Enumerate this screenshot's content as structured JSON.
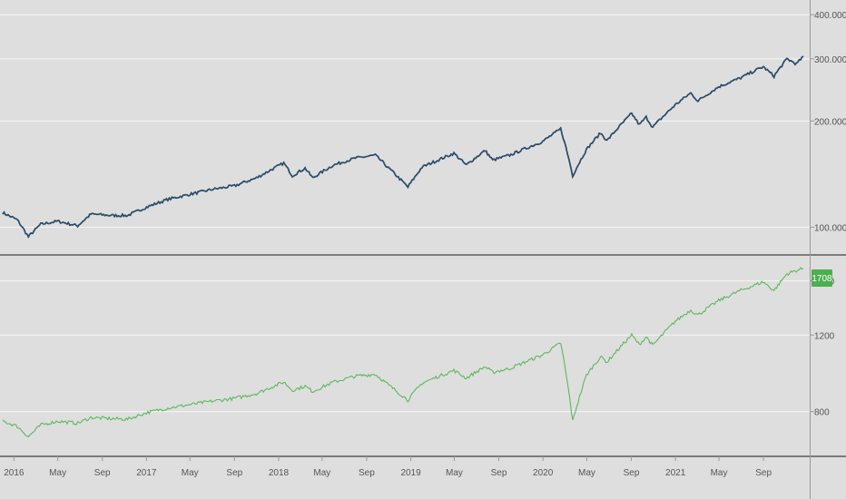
{
  "colors": {
    "background": "#dedede",
    "grid": "#f2f2f2",
    "separator": "#5a5a5a",
    "axis_text": "#555555",
    "price_series": "#1f5f99",
    "price_shadow": "#1a1a1a",
    "equity_series": "#5cb85c",
    "badge": "#4caf50"
  },
  "chart_data": [
    {
      "type": "line",
      "panel": "top",
      "y_scale": "log",
      "ylim": [
        85,
        420
      ],
      "yticks": [
        "100.0000",
        "200.0000",
        "300.0000",
        "400.0000"
      ],
      "ytick_values": [
        100,
        200,
        300,
        400
      ],
      "grid": true,
      "x_range": [
        "2015-12-01",
        "2021-12-20"
      ],
      "series": [
        {
          "color": "#1f5f99",
          "points": [
            [
              "2015-12-01",
              110
            ],
            [
              "2016-01-10",
              105
            ],
            [
              "2016-02-10",
              94
            ],
            [
              "2016-03-15",
              102
            ],
            [
              "2016-05-01",
              104
            ],
            [
              "2016-06-25",
              101
            ],
            [
              "2016-08-01",
              109
            ],
            [
              "2016-10-01",
              108
            ],
            [
              "2016-11-10",
              108
            ],
            [
              "2017-01-01",
              114
            ],
            [
              "2017-03-01",
              120
            ],
            [
              "2017-05-01",
              124
            ],
            [
              "2017-07-01",
              128
            ],
            [
              "2017-09-01",
              131
            ],
            [
              "2017-11-01",
              138
            ],
            [
              "2018-01-15",
              152
            ],
            [
              "2018-02-08",
              140
            ],
            [
              "2018-03-15",
              147
            ],
            [
              "2018-04-05",
              138
            ],
            [
              "2018-06-01",
              150
            ],
            [
              "2018-08-01",
              157
            ],
            [
              "2018-09-25",
              160
            ],
            [
              "2018-11-01",
              147
            ],
            [
              "2018-12-24",
              130
            ],
            [
              "2019-02-01",
              148
            ],
            [
              "2019-04-30",
              162
            ],
            [
              "2019-06-03",
              150
            ],
            [
              "2019-07-25",
              165
            ],
            [
              "2019-08-15",
              155
            ],
            [
              "2019-10-01",
              160
            ],
            [
              "2019-12-31",
              175
            ],
            [
              "2020-02-19",
              190
            ],
            [
              "2020-03-23",
              140
            ],
            [
              "2020-04-30",
              166
            ],
            [
              "2020-06-08",
              185
            ],
            [
              "2020-06-26",
              176
            ],
            [
              "2020-09-02",
              210
            ],
            [
              "2020-09-23",
              195
            ],
            [
              "2020-10-12",
              205
            ],
            [
              "2020-10-30",
              192
            ],
            [
              "2020-12-31",
              222
            ],
            [
              "2021-02-12",
              240
            ],
            [
              "2021-03-04",
              228
            ],
            [
              "2021-04-30",
              250
            ],
            [
              "2021-06-30",
              265
            ],
            [
              "2021-08-31",
              285
            ],
            [
              "2021-09-30",
              268
            ],
            [
              "2021-11-05",
              300
            ],
            [
              "2021-12-01",
              290
            ],
            [
              "2021-12-20",
              305
            ]
          ]
        }
      ]
    },
    {
      "type": "line",
      "panel": "bottom",
      "y_scale": "log",
      "ylim": [
        640,
        1800
      ],
      "yticks": [
        "800",
        "1200",
        "1600"
      ],
      "ytick_values": [
        800,
        1200,
        1600
      ],
      "grid": true,
      "x_range": [
        "2015-12-01",
        "2021-12-20"
      ],
      "last_value_label": "1708",
      "series": [
        {
          "color": "#5cb85c",
          "points": [
            [
              "2015-12-01",
              760
            ],
            [
              "2016-01-10",
              740
            ],
            [
              "2016-02-10",
              700
            ],
            [
              "2016-03-15",
              745
            ],
            [
              "2016-05-01",
              760
            ],
            [
              "2016-06-25",
              752
            ],
            [
              "2016-08-01",
              775
            ],
            [
              "2016-10-01",
              770
            ],
            [
              "2016-11-10",
              768
            ],
            [
              "2017-01-01",
              795
            ],
            [
              "2017-03-01",
              815
            ],
            [
              "2017-05-01",
              830
            ],
            [
              "2017-07-01",
              845
            ],
            [
              "2017-09-01",
              858
            ],
            [
              "2017-11-01",
              880
            ],
            [
              "2018-01-15",
              935
            ],
            [
              "2018-02-08",
              895
            ],
            [
              "2018-03-15",
              915
            ],
            [
              "2018-04-05",
              890
            ],
            [
              "2018-06-01",
              935
            ],
            [
              "2018-08-01",
              965
            ],
            [
              "2018-09-25",
              975
            ],
            [
              "2018-11-01",
              920
            ],
            [
              "2018-12-24",
              850
            ],
            [
              "2019-02-01",
              930
            ],
            [
              "2019-04-30",
              995
            ],
            [
              "2019-06-03",
              955
            ],
            [
              "2019-07-25",
              1015
            ],
            [
              "2019-08-15",
              985
            ],
            [
              "2019-10-01",
              1005
            ],
            [
              "2019-12-31",
              1080
            ],
            [
              "2020-02-19",
              1150
            ],
            [
              "2020-03-23",
              760
            ],
            [
              "2020-04-30",
              970
            ],
            [
              "2020-06-08",
              1070
            ],
            [
              "2020-06-26",
              1040
            ],
            [
              "2020-09-02",
              1200
            ],
            [
              "2020-09-23",
              1140
            ],
            [
              "2020-10-12",
              1190
            ],
            [
              "2020-10-30",
              1135
            ],
            [
              "2020-12-31",
              1290
            ],
            [
              "2021-02-12",
              1370
            ],
            [
              "2021-03-04",
              1335
            ],
            [
              "2021-04-30",
              1440
            ],
            [
              "2021-06-30",
              1520
            ],
            [
              "2021-08-31",
              1590
            ],
            [
              "2021-09-30",
              1520
            ],
            [
              "2021-11-05",
              1660
            ],
            [
              "2021-12-01",
              1690
            ],
            [
              "2021-12-20",
              1708
            ]
          ]
        }
      ]
    }
  ],
  "time_axis": {
    "labels": [
      {
        "text": "2016",
        "date": "2016-01-01"
      },
      {
        "text": "May",
        "date": "2016-05-01"
      },
      {
        "text": "Sep",
        "date": "2016-09-01"
      },
      {
        "text": "2017",
        "date": "2017-01-01"
      },
      {
        "text": "May",
        "date": "2017-05-01"
      },
      {
        "text": "Sep",
        "date": "2017-09-01"
      },
      {
        "text": "2018",
        "date": "2018-01-01"
      },
      {
        "text": "May",
        "date": "2018-05-01"
      },
      {
        "text": "Sep",
        "date": "2018-09-01"
      },
      {
        "text": "2019",
        "date": "2019-01-01"
      },
      {
        "text": "May",
        "date": "2019-05-01"
      },
      {
        "text": "Sep",
        "date": "2019-09-01"
      },
      {
        "text": "2020",
        "date": "2020-01-01"
      },
      {
        "text": "May",
        "date": "2020-05-01"
      },
      {
        "text": "Sep",
        "date": "2020-09-01"
      },
      {
        "text": "2021",
        "date": "2021-01-01"
      },
      {
        "text": "May",
        "date": "2021-05-01"
      },
      {
        "text": "Sep",
        "date": "2021-09-01"
      }
    ]
  }
}
